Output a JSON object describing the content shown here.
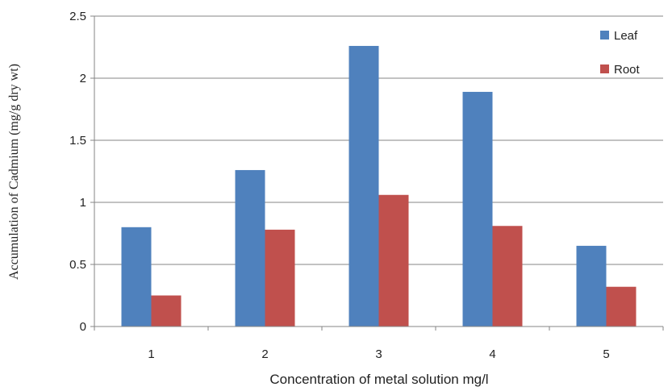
{
  "chart_data": {
    "type": "bar",
    "categories": [
      "1",
      "2",
      "3",
      "4",
      "5"
    ],
    "series": [
      {
        "name": "Leaf",
        "color": "#4f81bd",
        "values": [
          0.8,
          1.26,
          2.26,
          1.89,
          0.65
        ]
      },
      {
        "name": "Root",
        "color": "#c0504d",
        "values": [
          0.25,
          0.78,
          1.06,
          0.81,
          0.32
        ]
      }
    ],
    "xlabel": "Concentration of metal solution mg/l",
    "ylabel": "Accumulation of Cadmium (mg/g dry wt)",
    "ylim": [
      0,
      2.5
    ],
    "yticks": [
      "0",
      "0.5",
      "1",
      "1.5",
      "2",
      "2.5"
    ],
    "grid": true,
    "legend": "right"
  }
}
